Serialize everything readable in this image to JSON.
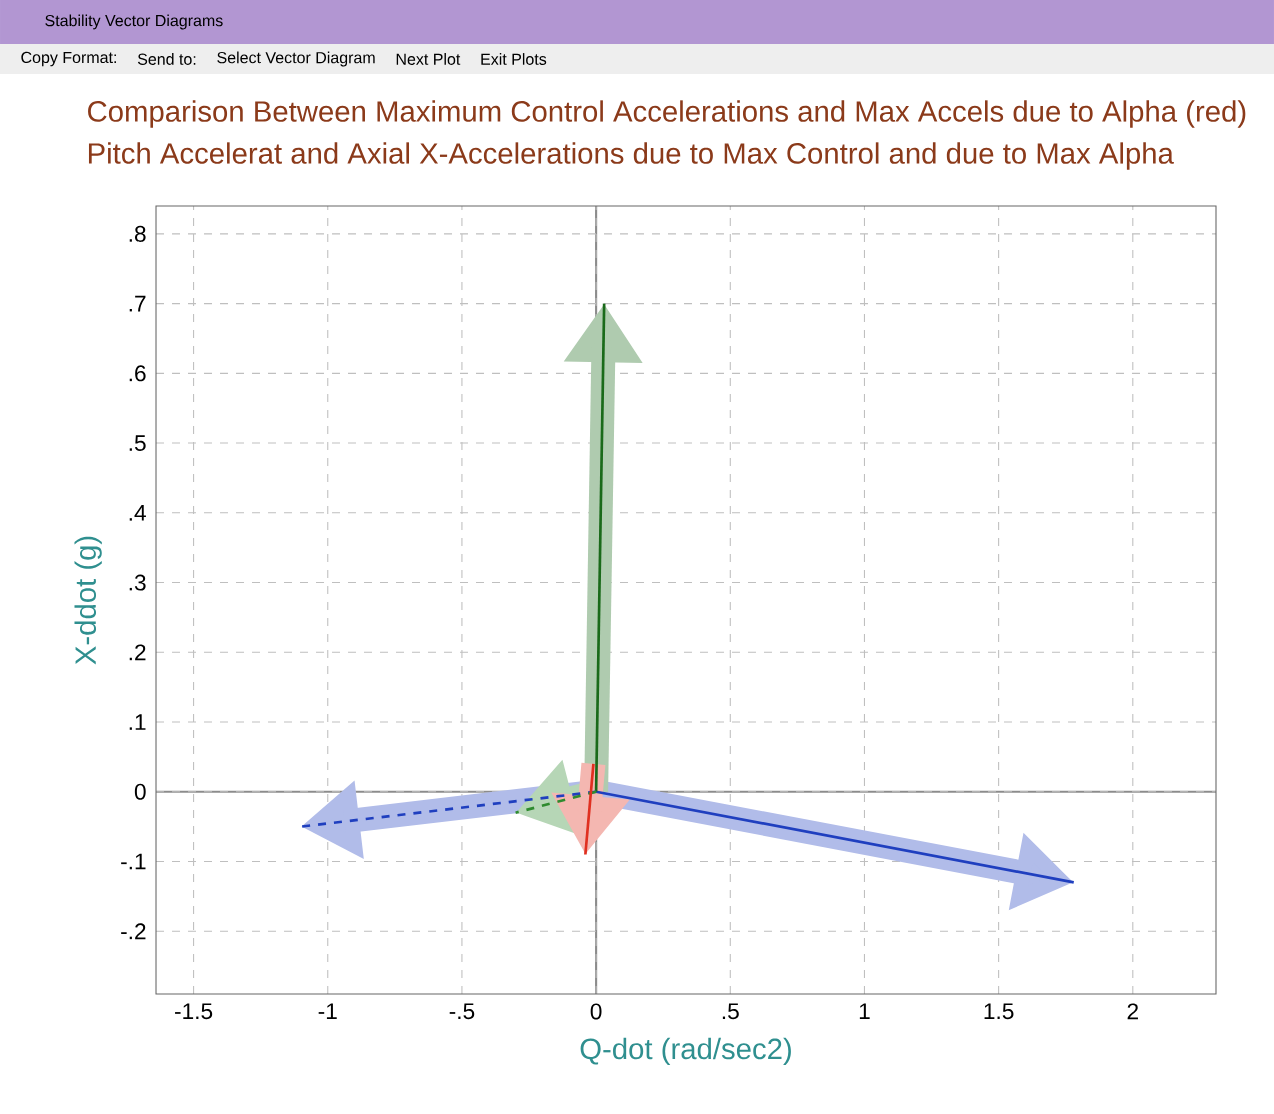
{
  "chart_data": {
    "type": "line",
    "title": "Comparison Between Maximum Control Accelerations and Max Accels due to Alpha (red)",
    "subtitle": "Pitch Accelerat and Axial X-Accelerations due to Max Control and due to Max Alpha",
    "xlabel": "Q-dot (rad/sec2)",
    "ylabel": "X-ddot (g)",
    "annotations": [
      "Stability Vector Diagrams",
      "Copy Format:",
      "Send to:",
      "Select Vector Diagram",
      "Next Plot",
      "Exit Plots"
    ],
    "xlim": [
      -1.64,
      2.31
    ],
    "ylim": [
      -0.29,
      0.84
    ],
    "xticks": [
      {
        "value": -1.5,
        "label": "-1.5"
      },
      {
        "value": -1,
        "label": "-1"
      },
      {
        "value": -0.5,
        "label": "-.5"
      },
      {
        "value": 0,
        "label": "0"
      },
      {
        "value": 0.5,
        "label": ".5"
      },
      {
        "value": 1,
        "label": "1"
      },
      {
        "value": 1.5,
        "label": "1.5"
      },
      {
        "value": 2,
        "label": "2"
      }
    ],
    "yticks": [
      {
        "value": -0.2,
        "label": "-.2"
      },
      {
        "value": -0.1,
        "label": "-.1"
      },
      {
        "value": 0,
        "label": "0"
      },
      {
        "value": 0.1,
        "label": ".1"
      },
      {
        "value": 0.2,
        "label": ".2"
      },
      {
        "value": 0.3,
        "label": ".3"
      },
      {
        "value": 0.4,
        "label": ".4"
      },
      {
        "value": 0.5,
        "label": ".5"
      },
      {
        "value": 0.6,
        "label": ".6"
      },
      {
        "value": 0.7,
        "label": ".7"
      },
      {
        "value": 0.8,
        "label": ".8"
      }
    ],
    "grid": true,
    "marker": "none",
    "series": [
      {
        "color": "#1f3fbf",
        "line_style": "solid",
        "x": [
          0,
          1.78
        ],
        "values": [
          0,
          -0.13
        ]
      },
      {
        "color": "#1a6a1a",
        "line_style": "solid",
        "x": [
          0,
          0.03
        ],
        "values": [
          0,
          0.7
        ]
      },
      {
        "color": "#1f3fbf",
        "line_style": "dashed",
        "x": [
          0,
          -1.1
        ],
        "values": [
          0,
          -0.05
        ]
      },
      {
        "color": "#2e8b2e",
        "line_style": "dashed",
        "x": [
          0,
          -0.3
        ],
        "values": [
          0,
          -0.03
        ]
      },
      {
        "color": "#e03020",
        "line_style": "solid",
        "x": [
          -0.01,
          -0.04
        ],
        "values": [
          0.04,
          -0.09
        ]
      }
    ]
  }
}
